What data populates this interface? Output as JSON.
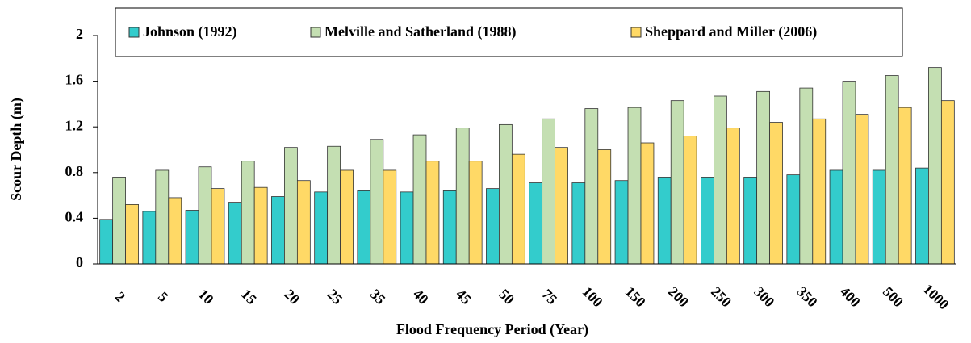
{
  "chart_data": {
    "type": "bar",
    "x_label": "Flood Frequency Period (Year)",
    "y_label": "Scour Depth (m)",
    "categories": [
      "2",
      "5",
      "10",
      "15",
      "20",
      "25",
      "35",
      "40",
      "45",
      "50",
      "75",
      "100",
      "150",
      "200",
      "250",
      "300",
      "350",
      "400",
      "500",
      "1000"
    ],
    "series": [
      {
        "name": "Johnson (1992)",
        "color": "#33cccc",
        "values": [
          0.39,
          0.46,
          0.47,
          0.54,
          0.59,
          0.63,
          0.64,
          0.63,
          0.64,
          0.66,
          0.71,
          0.71,
          0.73,
          0.76,
          0.76,
          0.76,
          0.78,
          0.82,
          0.82,
          0.84
        ]
      },
      {
        "name": "Melville and Satherland (1988)",
        "color": "#c4dfb2",
        "values": [
          0.76,
          0.82,
          0.85,
          0.9,
          1.02,
          1.03,
          1.09,
          1.13,
          1.19,
          1.22,
          1.27,
          1.36,
          1.37,
          1.43,
          1.47,
          1.51,
          1.54,
          1.6,
          1.65,
          1.72
        ]
      },
      {
        "name": "Sheppard and Miller (2006)",
        "color": "#ffd966",
        "values": [
          0.52,
          0.58,
          0.66,
          0.67,
          0.73,
          0.82,
          0.82,
          0.9,
          0.9,
          0.96,
          1.02,
          1.0,
          1.06,
          1.12,
          1.19,
          1.24,
          1.27,
          1.31,
          1.37,
          1.43
        ]
      }
    ],
    "ylim": [
      0,
      2
    ],
    "yticks": [
      0,
      0.4,
      0.8,
      1.2,
      1.6,
      2
    ],
    "grid": false,
    "legend": "top"
  }
}
